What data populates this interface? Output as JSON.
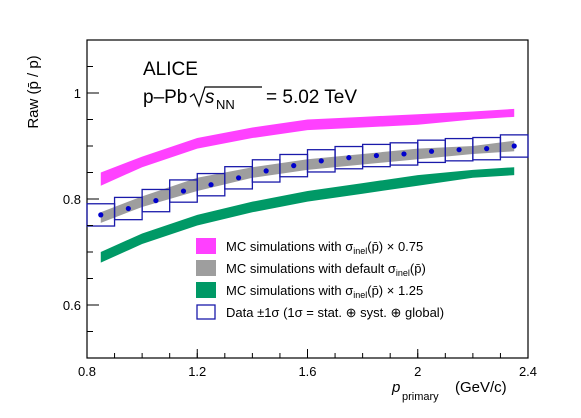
{
  "chart_data": {
    "type": "line",
    "annotations": {
      "experiment": "ALICE",
      "system": "p–Pb",
      "energy_symbol": "s",
      "energy_sub": "NN",
      "energy_value": "= 5.02 TeV"
    },
    "xaxis": {
      "label": "p",
      "label_sub": "primary",
      "label_unit": "(GeV/c)",
      "range": [
        0.8,
        2.4
      ],
      "ticks": [
        0.8,
        1.2,
        1.6,
        2.0,
        2.4
      ],
      "tick_labels": [
        "0.8",
        "1.2",
        "1.6",
        "2",
        "2.4"
      ]
    },
    "yaxis": {
      "label": "Raw (p̄ / p)",
      "range": [
        0.5,
        1.1
      ],
      "ticks": [
        0.6,
        0.8,
        1.0
      ],
      "tick_labels": [
        "0.6",
        "0.8",
        "1"
      ]
    },
    "grid": false,
    "legend_position": "bottom-right",
    "series": [
      {
        "name": "MC simulations with σinel(p̄) × 0.75",
        "kind": "band",
        "color": "#ff40ff",
        "x": [
          0.85,
          1.0,
          1.2,
          1.4,
          1.6,
          1.8,
          2.0,
          2.2,
          2.35
        ],
        "lower": [
          0.825,
          0.86,
          0.895,
          0.915,
          0.93,
          0.935,
          0.94,
          0.95,
          0.955
        ],
        "upper": [
          0.85,
          0.88,
          0.915,
          0.935,
          0.95,
          0.955,
          0.96,
          0.965,
          0.97
        ]
      },
      {
        "name": "MC simulations with default σinel(p̄)",
        "kind": "band",
        "color": "#9e9e9e",
        "x": [
          0.85,
          1.0,
          1.2,
          1.4,
          1.6,
          1.8,
          2.0,
          2.2,
          2.35
        ],
        "lower": [
          0.755,
          0.785,
          0.815,
          0.84,
          0.855,
          0.865,
          0.875,
          0.885,
          0.89
        ],
        "upper": [
          0.775,
          0.805,
          0.84,
          0.86,
          0.875,
          0.885,
          0.895,
          0.9,
          0.91
        ]
      },
      {
        "name": "MC simulations with σinel(p̄) × 1.25",
        "kind": "band",
        "color": "#009966",
        "x": [
          0.85,
          1.0,
          1.2,
          1.4,
          1.6,
          1.8,
          2.0,
          2.2,
          2.35
        ],
        "lower": [
          0.68,
          0.715,
          0.75,
          0.775,
          0.795,
          0.81,
          0.825,
          0.84,
          0.845
        ],
        "upper": [
          0.7,
          0.735,
          0.77,
          0.795,
          0.815,
          0.83,
          0.845,
          0.855,
          0.86
        ]
      },
      {
        "name": "Data ±1σ (1σ = stat. ⊕ syst. ⊕ global)",
        "kind": "points_with_boxes",
        "color": "#1a1aaa",
        "marker_color": "#0000cc",
        "x": [
          0.85,
          0.95,
          1.05,
          1.15,
          1.25,
          1.35,
          1.45,
          1.55,
          1.65,
          1.75,
          1.85,
          1.95,
          2.05,
          2.15,
          2.25,
          2.35
        ],
        "y": [
          0.77,
          0.782,
          0.797,
          0.815,
          0.827,
          0.84,
          0.853,
          0.863,
          0.872,
          0.878,
          0.882,
          0.885,
          0.89,
          0.893,
          0.895,
          0.9
        ],
        "box_half_height": 0.021
      }
    ],
    "legend": {
      "entries": [
        {
          "prefix": "MC simulations with ",
          "sym": "σ",
          "sub": "inel",
          "arg": "(p̄)",
          "suffix": " × 0.75"
        },
        {
          "prefix": "MC simulations with default ",
          "sym": "σ",
          "sub": "inel",
          "arg": "(p̄)",
          "suffix": ""
        },
        {
          "prefix": "MC simulations with ",
          "sym": "σ",
          "sub": "inel",
          "arg": "(p̄)",
          "suffix": " × 1.25"
        },
        {
          "prefix": "Data ±1σ (1σ = stat. ⊕ syst. ⊕ global)",
          "sym": "",
          "sub": "",
          "arg": "",
          "suffix": ""
        }
      ]
    }
  }
}
